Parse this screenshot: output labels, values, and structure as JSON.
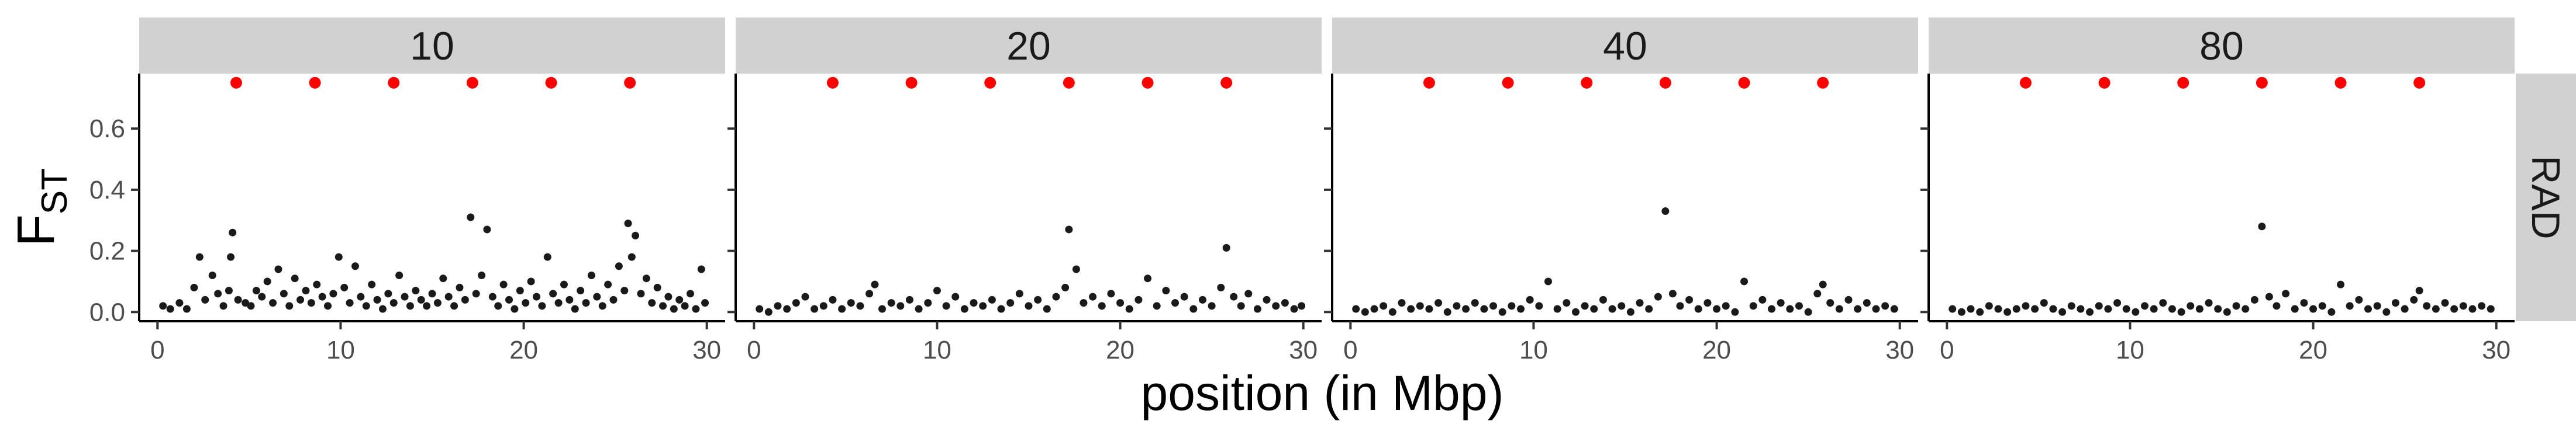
{
  "chart_data": {
    "type": "scatter",
    "layout": "facet-grid",
    "xlabel": "position (in Mbp)",
    "ylabel": "F",
    "ylabel_subscript": "ST",
    "row_strip": "RAD",
    "xlim": [
      -1,
      31
    ],
    "ylim": [
      -0.03,
      0.78
    ],
    "x_ticks": [
      0,
      10,
      20,
      30
    ],
    "x_tick_labels": [
      "0",
      "10",
      "20",
      "30"
    ],
    "y_ticks": [
      0.0,
      0.2,
      0.4,
      0.6
    ],
    "y_tick_labels": [
      "0.0",
      "0.2",
      "0.4",
      "0.6"
    ],
    "grid": false,
    "marker_colors": {
      "points": "#1a1a1a",
      "markers": "#ff0000",
      "strip": "#d1d1d1"
    },
    "selection_markers": {
      "x": [
        4.3,
        8.6,
        12.9,
        17.2,
        21.5,
        25.8
      ],
      "y": 0.75
    },
    "panels": [
      {
        "label": "10",
        "points": [
          [
            0.3,
            0.02
          ],
          [
            0.7,
            0.01
          ],
          [
            1.2,
            0.03
          ],
          [
            1.6,
            0.01
          ],
          [
            2.0,
            0.08
          ],
          [
            2.3,
            0.18
          ],
          [
            2.6,
            0.04
          ],
          [
            3.0,
            0.12
          ],
          [
            3.3,
            0.06
          ],
          [
            3.6,
            0.02
          ],
          [
            3.9,
            0.07
          ],
          [
            4.0,
            0.18
          ],
          [
            4.1,
            0.26
          ],
          [
            4.4,
            0.04
          ],
          [
            4.8,
            0.03
          ],
          [
            5.1,
            0.02
          ],
          [
            5.4,
            0.07
          ],
          [
            5.7,
            0.05
          ],
          [
            6.0,
            0.1
          ],
          [
            6.3,
            0.03
          ],
          [
            6.6,
            0.14
          ],
          [
            6.9,
            0.06
          ],
          [
            7.2,
            0.02
          ],
          [
            7.5,
            0.11
          ],
          [
            7.8,
            0.04
          ],
          [
            8.1,
            0.07
          ],
          [
            8.4,
            0.03
          ],
          [
            8.7,
            0.09
          ],
          [
            9.0,
            0.05
          ],
          [
            9.3,
            0.02
          ],
          [
            9.6,
            0.06
          ],
          [
            9.9,
            0.18
          ],
          [
            10.2,
            0.08
          ],
          [
            10.5,
            0.03
          ],
          [
            10.8,
            0.15
          ],
          [
            11.1,
            0.05
          ],
          [
            11.4,
            0.02
          ],
          [
            11.7,
            0.09
          ],
          [
            12.0,
            0.04
          ],
          [
            12.3,
            0.01
          ],
          [
            12.6,
            0.06
          ],
          [
            12.9,
            0.03
          ],
          [
            13.2,
            0.12
          ],
          [
            13.5,
            0.05
          ],
          [
            13.8,
            0.02
          ],
          [
            14.1,
            0.07
          ],
          [
            14.4,
            0.04
          ],
          [
            14.7,
            0.02
          ],
          [
            15.0,
            0.06
          ],
          [
            15.3,
            0.03
          ],
          [
            15.6,
            0.11
          ],
          [
            15.9,
            0.05
          ],
          [
            16.2,
            0.02
          ],
          [
            16.5,
            0.08
          ],
          [
            16.8,
            0.04
          ],
          [
            17.1,
            0.31
          ],
          [
            17.4,
            0.06
          ],
          [
            17.7,
            0.12
          ],
          [
            18.0,
            0.27
          ],
          [
            18.3,
            0.05
          ],
          [
            18.6,
            0.02
          ],
          [
            18.9,
            0.09
          ],
          [
            19.2,
            0.04
          ],
          [
            19.5,
            0.01
          ],
          [
            19.8,
            0.07
          ],
          [
            20.1,
            0.03
          ],
          [
            20.4,
            0.1
          ],
          [
            20.7,
            0.05
          ],
          [
            21.0,
            0.02
          ],
          [
            21.3,
            0.18
          ],
          [
            21.6,
            0.06
          ],
          [
            21.9,
            0.03
          ],
          [
            22.2,
            0.09
          ],
          [
            22.5,
            0.04
          ],
          [
            22.8,
            0.01
          ],
          [
            23.1,
            0.07
          ],
          [
            23.4,
            0.03
          ],
          [
            23.7,
            0.12
          ],
          [
            24.0,
            0.05
          ],
          [
            24.3,
            0.02
          ],
          [
            24.6,
            0.09
          ],
          [
            24.9,
            0.04
          ],
          [
            25.2,
            0.15
          ],
          [
            25.5,
            0.07
          ],
          [
            25.7,
            0.29
          ],
          [
            25.9,
            0.18
          ],
          [
            26.1,
            0.25
          ],
          [
            26.4,
            0.06
          ],
          [
            26.7,
            0.11
          ],
          [
            27.0,
            0.03
          ],
          [
            27.3,
            0.08
          ],
          [
            27.6,
            0.02
          ],
          [
            27.9,
            0.05
          ],
          [
            28.2,
            0.01
          ],
          [
            28.5,
            0.04
          ],
          [
            28.8,
            0.02
          ],
          [
            29.1,
            0.06
          ],
          [
            29.4,
            0.01
          ],
          [
            29.7,
            0.14
          ],
          [
            29.9,
            0.03
          ]
        ]
      },
      {
        "label": "20",
        "points": [
          [
            0.3,
            0.01
          ],
          [
            0.8,
            0.0
          ],
          [
            1.3,
            0.02
          ],
          [
            1.8,
            0.01
          ],
          [
            2.3,
            0.03
          ],
          [
            2.8,
            0.05
          ],
          [
            3.3,
            0.01
          ],
          [
            3.8,
            0.02
          ],
          [
            4.3,
            0.04
          ],
          [
            4.8,
            0.01
          ],
          [
            5.3,
            0.03
          ],
          [
            5.8,
            0.02
          ],
          [
            6.3,
            0.06
          ],
          [
            6.6,
            0.09
          ],
          [
            7.0,
            0.01
          ],
          [
            7.5,
            0.03
          ],
          [
            8.0,
            0.02
          ],
          [
            8.5,
            0.04
          ],
          [
            9.0,
            0.01
          ],
          [
            9.5,
            0.03
          ],
          [
            10.0,
            0.07
          ],
          [
            10.5,
            0.02
          ],
          [
            11.0,
            0.05
          ],
          [
            11.5,
            0.01
          ],
          [
            12.0,
            0.03
          ],
          [
            12.5,
            0.02
          ],
          [
            13.0,
            0.04
          ],
          [
            13.5,
            0.01
          ],
          [
            14.0,
            0.03
          ],
          [
            14.5,
            0.06
          ],
          [
            15.0,
            0.02
          ],
          [
            15.5,
            0.04
          ],
          [
            16.0,
            0.01
          ],
          [
            16.5,
            0.05
          ],
          [
            17.0,
            0.08
          ],
          [
            17.2,
            0.27
          ],
          [
            17.6,
            0.14
          ],
          [
            18.0,
            0.03
          ],
          [
            18.5,
            0.05
          ],
          [
            19.0,
            0.02
          ],
          [
            19.5,
            0.06
          ],
          [
            20.0,
            0.03
          ],
          [
            20.5,
            0.01
          ],
          [
            21.0,
            0.04
          ],
          [
            21.5,
            0.11
          ],
          [
            22.0,
            0.02
          ],
          [
            22.5,
            0.07
          ],
          [
            23.0,
            0.03
          ],
          [
            23.5,
            0.05
          ],
          [
            24.0,
            0.01
          ],
          [
            24.5,
            0.04
          ],
          [
            25.0,
            0.02
          ],
          [
            25.5,
            0.08
          ],
          [
            25.8,
            0.21
          ],
          [
            26.2,
            0.05
          ],
          [
            26.6,
            0.02
          ],
          [
            27.0,
            0.06
          ],
          [
            27.5,
            0.01
          ],
          [
            28.0,
            0.04
          ],
          [
            28.5,
            0.02
          ],
          [
            29.0,
            0.03
          ],
          [
            29.5,
            0.01
          ],
          [
            29.9,
            0.02
          ]
        ]
      },
      {
        "label": "40",
        "points": [
          [
            0.3,
            0.01
          ],
          [
            0.8,
            0.0
          ],
          [
            1.3,
            0.01
          ],
          [
            1.8,
            0.02
          ],
          [
            2.3,
            0.0
          ],
          [
            2.8,
            0.03
          ],
          [
            3.3,
            0.01
          ],
          [
            3.8,
            0.02
          ],
          [
            4.3,
            0.01
          ],
          [
            4.8,
            0.03
          ],
          [
            5.3,
            0.0
          ],
          [
            5.8,
            0.02
          ],
          [
            6.3,
            0.01
          ],
          [
            6.8,
            0.03
          ],
          [
            7.3,
            0.01
          ],
          [
            7.8,
            0.02
          ],
          [
            8.3,
            0.0
          ],
          [
            8.8,
            0.02
          ],
          [
            9.3,
            0.01
          ],
          [
            9.8,
            0.04
          ],
          [
            10.3,
            0.02
          ],
          [
            10.8,
            0.1
          ],
          [
            11.3,
            0.01
          ],
          [
            11.8,
            0.03
          ],
          [
            12.3,
            0.0
          ],
          [
            12.8,
            0.02
          ],
          [
            13.3,
            0.01
          ],
          [
            13.8,
            0.04
          ],
          [
            14.3,
            0.01
          ],
          [
            14.8,
            0.02
          ],
          [
            15.3,
            0.0
          ],
          [
            15.8,
            0.03
          ],
          [
            16.3,
            0.01
          ],
          [
            16.8,
            0.05
          ],
          [
            17.2,
            0.33
          ],
          [
            17.6,
            0.06
          ],
          [
            18.0,
            0.02
          ],
          [
            18.5,
            0.04
          ],
          [
            19.0,
            0.01
          ],
          [
            19.5,
            0.03
          ],
          [
            20.0,
            0.01
          ],
          [
            20.5,
            0.02
          ],
          [
            21.0,
            0.0
          ],
          [
            21.5,
            0.1
          ],
          [
            22.0,
            0.02
          ],
          [
            22.5,
            0.04
          ],
          [
            23.0,
            0.01
          ],
          [
            23.5,
            0.03
          ],
          [
            24.0,
            0.01
          ],
          [
            24.5,
            0.02
          ],
          [
            25.0,
            0.0
          ],
          [
            25.5,
            0.06
          ],
          [
            25.8,
            0.09
          ],
          [
            26.2,
            0.03
          ],
          [
            26.7,
            0.01
          ],
          [
            27.2,
            0.04
          ],
          [
            27.7,
            0.01
          ],
          [
            28.2,
            0.03
          ],
          [
            28.7,
            0.01
          ],
          [
            29.2,
            0.02
          ],
          [
            29.7,
            0.01
          ]
        ]
      },
      {
        "label": "80",
        "points": [
          [
            0.3,
            0.01
          ],
          [
            0.8,
            0.0
          ],
          [
            1.3,
            0.01
          ],
          [
            1.8,
            0.0
          ],
          [
            2.3,
            0.02
          ],
          [
            2.8,
            0.01
          ],
          [
            3.3,
            0.0
          ],
          [
            3.8,
            0.01
          ],
          [
            4.3,
            0.02
          ],
          [
            4.8,
            0.01
          ],
          [
            5.3,
            0.03
          ],
          [
            5.8,
            0.01
          ],
          [
            6.3,
            0.0
          ],
          [
            6.8,
            0.02
          ],
          [
            7.3,
            0.01
          ],
          [
            7.8,
            0.0
          ],
          [
            8.3,
            0.02
          ],
          [
            8.8,
            0.01
          ],
          [
            9.3,
            0.03
          ],
          [
            9.8,
            0.01
          ],
          [
            10.3,
            0.0
          ],
          [
            10.8,
            0.02
          ],
          [
            11.3,
            0.01
          ],
          [
            11.8,
            0.03
          ],
          [
            12.3,
            0.01
          ],
          [
            12.8,
            0.0
          ],
          [
            13.3,
            0.02
          ],
          [
            13.8,
            0.01
          ],
          [
            14.3,
            0.03
          ],
          [
            14.8,
            0.01
          ],
          [
            15.3,
            0.0
          ],
          [
            15.8,
            0.02
          ],
          [
            16.3,
            0.01
          ],
          [
            16.8,
            0.04
          ],
          [
            17.2,
            0.28
          ],
          [
            17.6,
            0.05
          ],
          [
            18.0,
            0.02
          ],
          [
            18.5,
            0.06
          ],
          [
            19.0,
            0.01
          ],
          [
            19.5,
            0.03
          ],
          [
            20.0,
            0.01
          ],
          [
            20.5,
            0.02
          ],
          [
            21.0,
            0.0
          ],
          [
            21.5,
            0.09
          ],
          [
            22.0,
            0.02
          ],
          [
            22.5,
            0.04
          ],
          [
            23.0,
            0.01
          ],
          [
            23.5,
            0.02
          ],
          [
            24.0,
            0.0
          ],
          [
            24.5,
            0.03
          ],
          [
            25.0,
            0.01
          ],
          [
            25.5,
            0.04
          ],
          [
            25.8,
            0.07
          ],
          [
            26.2,
            0.02
          ],
          [
            26.7,
            0.01
          ],
          [
            27.2,
            0.03
          ],
          [
            27.7,
            0.01
          ],
          [
            28.2,
            0.02
          ],
          [
            28.7,
            0.01
          ],
          [
            29.2,
            0.02
          ],
          [
            29.7,
            0.01
          ]
        ]
      }
    ]
  }
}
